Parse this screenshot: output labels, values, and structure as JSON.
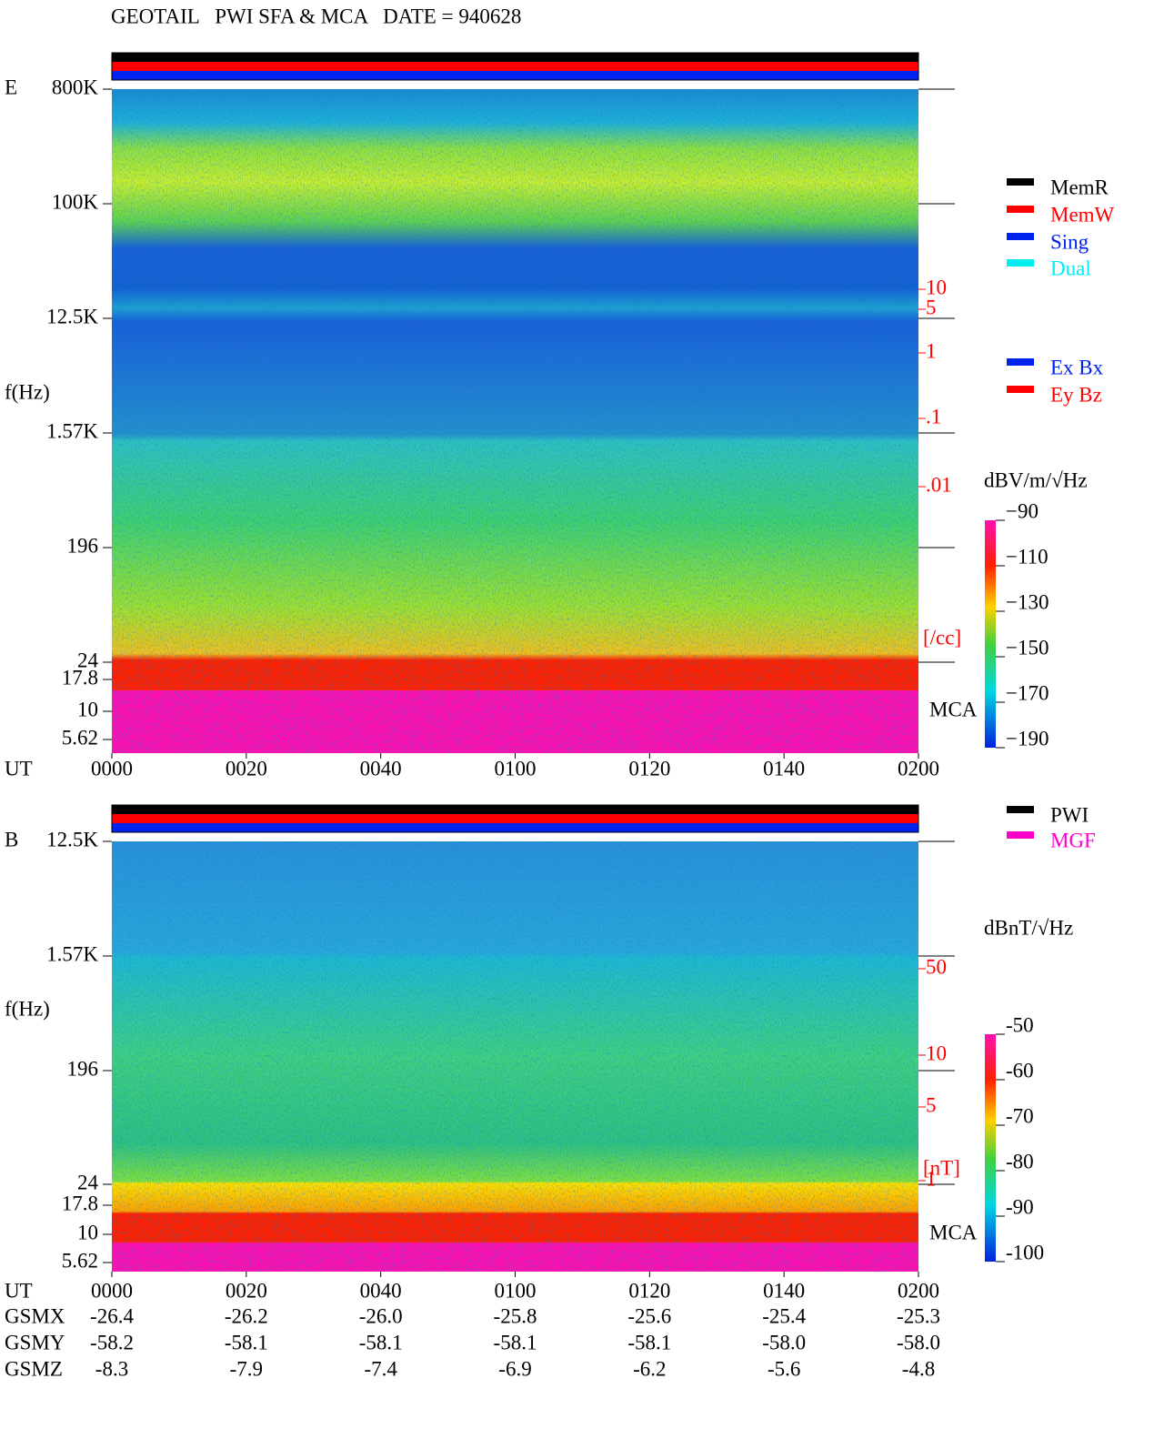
{
  "title": "GEOTAIL   PWI SFA & MCA   DATE = 940628",
  "panels": [
    {
      "label": "E",
      "freq_ticks": [
        "800K",
        "100K",
        "12.5K",
        "1.57K",
        "196",
        "24",
        "17.8",
        "10",
        "5.62"
      ],
      "axis_label": "f(Hz)",
      "time_label": "UT",
      "time_ticks": [
        "0000",
        "0020",
        "0040",
        "0100",
        "0120",
        "0140",
        "0200"
      ],
      "right_ticks": [
        "10",
        "5",
        "1",
        ".1",
        ".01"
      ],
      "right_unit": "[/cc]",
      "mca_label": "MCA",
      "legend": [
        {
          "name": "MemR",
          "color": "#000000"
        },
        {
          "name": "MemW",
          "color": "#ff0000"
        },
        {
          "name": "Sing",
          "color": "#0022ee"
        },
        {
          "name": "Dual",
          "color": "#00eeee"
        }
      ],
      "legend2": [
        {
          "name": "Ex Bx",
          "color": "#0022ee"
        },
        {
          "name": "Ey Bz",
          "color": "#ff0000"
        }
      ],
      "colorbar_unit": "dBV/m/√Hz",
      "colorbar_ticks": [
        "−90",
        "−110",
        "−130",
        "−150",
        "−170",
        "−190"
      ]
    },
    {
      "label": "B",
      "freq_ticks": [
        "12.5K",
        "1.57K",
        "196",
        "24",
        "17.8",
        "10",
        "5.62"
      ],
      "axis_label": "f(Hz)",
      "time_label": "UT",
      "time_ticks": [
        "0000",
        "0020",
        "0040",
        "0100",
        "0120",
        "0140",
        "0200"
      ],
      "right_ticks": [
        "50",
        "10",
        "5",
        "1"
      ],
      "right_unit": "[nT]",
      "mca_label": "MCA",
      "legend": [
        {
          "name": "PWI",
          "color": "#000000"
        },
        {
          "name": "MGF",
          "color": "#ff00cc"
        }
      ],
      "colorbar_unit": "dBnT/√Hz",
      "colorbar_ticks": [
        "-50",
        "-60",
        "-70",
        "-80",
        "-90",
        "-100"
      ]
    }
  ],
  "orbit": {
    "rows": [
      {
        "label": "GSMX",
        "values": [
          "-26.4",
          "-26.2",
          "-26.0",
          "-25.8",
          "-25.6",
          "-25.4",
          "-25.3"
        ]
      },
      {
        "label": "GSMY",
        "values": [
          "-58.2",
          "-58.1",
          "-58.1",
          "-58.1",
          "-58.1",
          "-58.0",
          "-58.0"
        ]
      },
      {
        "label": "GSMZ",
        "values": [
          "-8.3",
          "-7.9",
          "-7.4",
          "-6.9",
          "-6.2",
          "-5.6",
          "-4.8"
        ]
      }
    ]
  }
}
